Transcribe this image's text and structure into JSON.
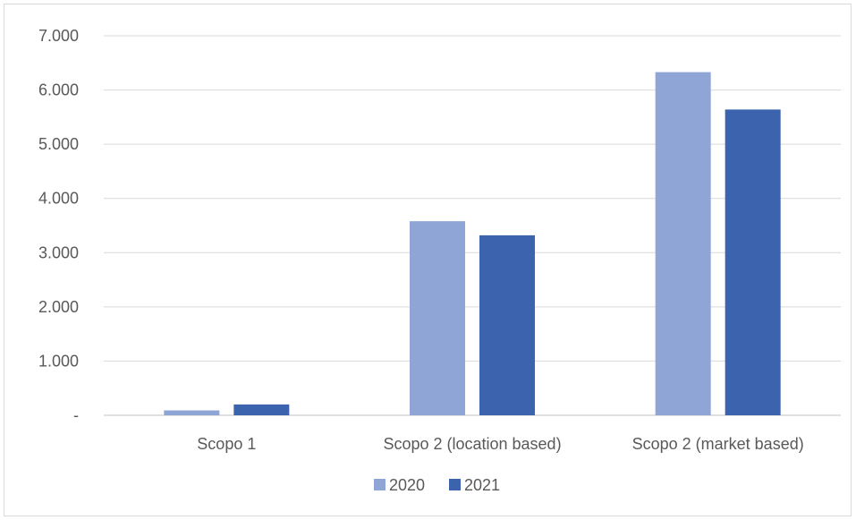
{
  "chart_data": {
    "type": "bar",
    "categories": [
      "Scopo 1",
      "Scopo 2 (location based)",
      "Scopo 2 (market based)"
    ],
    "series": [
      {
        "name": "2020",
        "color": "#8FA5D5",
        "values": [
          90,
          3580,
          6330
        ]
      },
      {
        "name": "2021",
        "color": "#3B63AE",
        "values": [
          200,
          3320,
          5640
        ]
      }
    ],
    "ylim": [
      0,
      7000
    ],
    "yticks": [
      0,
      1000,
      2000,
      3000,
      4000,
      5000,
      6000,
      7000
    ],
    "ytick_labels": [
      "-",
      "1.000",
      "2.000",
      "3.000",
      "4.000",
      "5.000",
      "6.000",
      "7.000"
    ],
    "grid": true,
    "legend": "bottom"
  }
}
